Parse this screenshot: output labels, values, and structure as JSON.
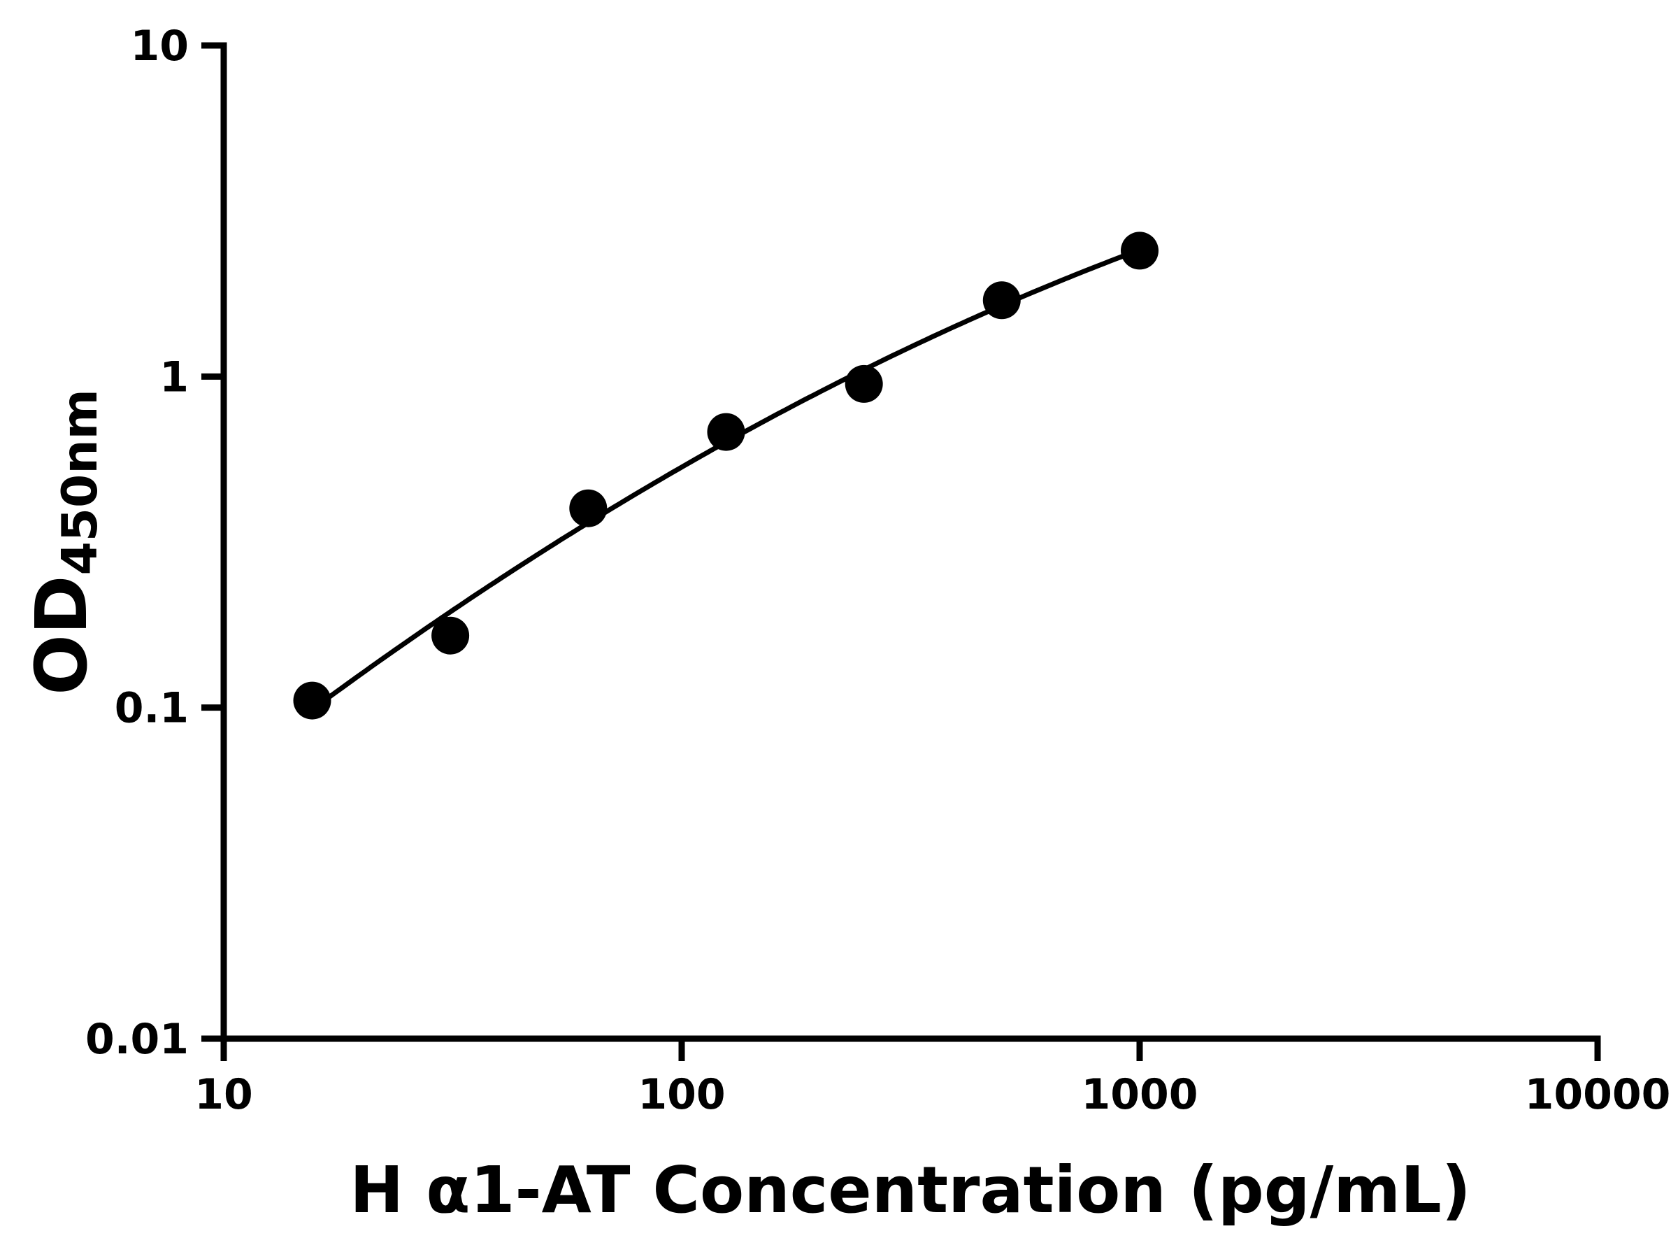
{
  "chart_data": {
    "type": "scatter",
    "title": "",
    "xlabel": "H α1-AT Concentration (pg/mL)",
    "ylabel": "OD450nm",
    "ylabel_main": "OD",
    "ylabel_sub": "450nm",
    "x_scale": "log",
    "y_scale": "log",
    "xlim": [
      10,
      10000
    ],
    "ylim": [
      0.01,
      10
    ],
    "x_ticks": [
      {
        "value": 10,
        "label": "10"
      },
      {
        "value": 100,
        "label": "100"
      },
      {
        "value": 1000,
        "label": "1000"
      },
      {
        "value": 10000,
        "label": "10000"
      }
    ],
    "y_ticks": [
      {
        "value": 10,
        "label": "10"
      },
      {
        "value": 1,
        "label": "1"
      },
      {
        "value": 0.1,
        "label": "0.1"
      },
      {
        "value": 0.01,
        "label": "0.01"
      }
    ],
    "grid": false,
    "legend": false,
    "fit_line": "smooth curve through data points",
    "series": [
      {
        "x": [
          15.6,
          31.25,
          62.5,
          125,
          250,
          500,
          1000
        ],
        "y": [
          0.105,
          0.165,
          0.4,
          0.68,
          0.95,
          1.7,
          2.4
        ]
      }
    ],
    "axis_color": "#000000",
    "marker_color": "#000000",
    "line_color": "#000000",
    "background_color": "#ffffff"
  }
}
